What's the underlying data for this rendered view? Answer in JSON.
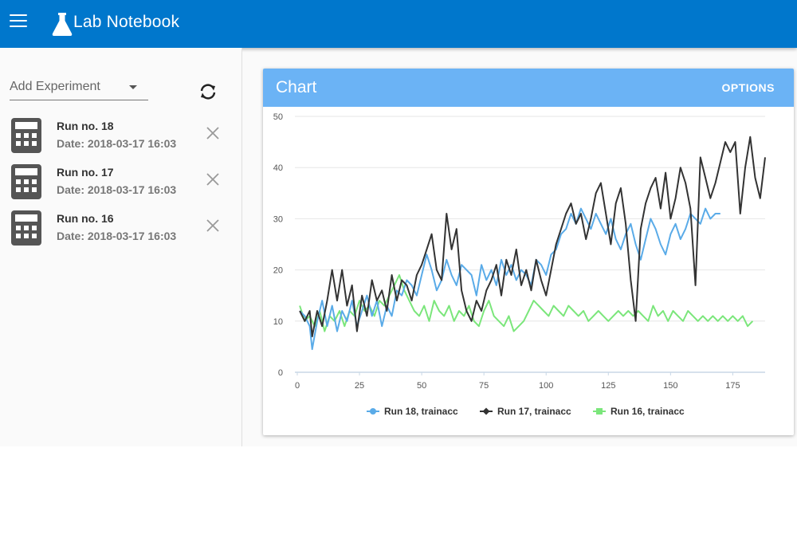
{
  "app": {
    "title": "Lab Notebook"
  },
  "sidebar": {
    "add_experiment_label": "Add Experiment",
    "experiments": [
      {
        "name": "Run no. 18",
        "date": "Date: 2018-03-17 16:03"
      },
      {
        "name": "Run no. 17",
        "date": "Date: 2018-03-17 16:03"
      },
      {
        "name": "Run no. 16",
        "date": "Date: 2018-03-17 16:03"
      }
    ]
  },
  "card": {
    "title": "Chart",
    "options_label": "OPTIONS"
  },
  "colors": {
    "appbar": "#0077cc",
    "card_header": "#6bb3f5",
    "run18": "#5aabe8",
    "run17": "#333333",
    "run16": "#7be67b"
  },
  "chart_data": {
    "type": "line",
    "title": "",
    "xlabel": "",
    "ylabel": "",
    "xlim": [
      0,
      188
    ],
    "ylim": [
      0,
      50
    ],
    "x_ticks": [
      0,
      25,
      50,
      75,
      100,
      125,
      150,
      175
    ],
    "y_ticks": [
      0,
      10,
      20,
      30,
      40,
      50
    ],
    "grid": "horizontal",
    "legend_position": "bottom",
    "series": [
      {
        "name": "Run 18, trainacc",
        "color": "#5aabe8",
        "points": [
          [
            1,
            12
          ],
          [
            3,
            11
          ],
          [
            5,
            9
          ],
          [
            6,
            4.5
          ],
          [
            8,
            10
          ],
          [
            10,
            14
          ],
          [
            12,
            9
          ],
          [
            14,
            13
          ],
          [
            16,
            8
          ],
          [
            18,
            12
          ],
          [
            20,
            10
          ],
          [
            22,
            14
          ],
          [
            24,
            9
          ],
          [
            26,
            12
          ],
          [
            28,
            15
          ],
          [
            30,
            11
          ],
          [
            32,
            14
          ],
          [
            34,
            9
          ],
          [
            36,
            13
          ],
          [
            38,
            11
          ],
          [
            40,
            16
          ],
          [
            42,
            15
          ],
          [
            44,
            18
          ],
          [
            46,
            17
          ],
          [
            48,
            15
          ],
          [
            50,
            19
          ],
          [
            52,
            23
          ],
          [
            54,
            20
          ],
          [
            56,
            16
          ],
          [
            58,
            18
          ],
          [
            60,
            22
          ],
          [
            62,
            19
          ],
          [
            64,
            17
          ],
          [
            66,
            21
          ],
          [
            68,
            20
          ],
          [
            70,
            19
          ],
          [
            72,
            15
          ],
          [
            74,
            21
          ],
          [
            76,
            18
          ],
          [
            78,
            20
          ],
          [
            80,
            17
          ],
          [
            82,
            22
          ],
          [
            84,
            19
          ],
          [
            86,
            21
          ],
          [
            88,
            18
          ],
          [
            90,
            20
          ],
          [
            92,
            19
          ],
          [
            94,
            17
          ],
          [
            96,
            22
          ],
          [
            98,
            21
          ],
          [
            100,
            19
          ],
          [
            102,
            23
          ],
          [
            104,
            24
          ],
          [
            106,
            27
          ],
          [
            108,
            28
          ],
          [
            110,
            31
          ],
          [
            112,
            29
          ],
          [
            114,
            32
          ],
          [
            116,
            30
          ],
          [
            118,
            28
          ],
          [
            120,
            31
          ],
          [
            122,
            29
          ],
          [
            124,
            27
          ],
          [
            126,
            30
          ],
          [
            128,
            26
          ],
          [
            130,
            24
          ],
          [
            132,
            27
          ],
          [
            134,
            29
          ],
          [
            136,
            25
          ],
          [
            138,
            22
          ],
          [
            140,
            26
          ],
          [
            142,
            30
          ],
          [
            144,
            28
          ],
          [
            146,
            25
          ],
          [
            148,
            23
          ],
          [
            150,
            27
          ],
          [
            152,
            29
          ],
          [
            154,
            26
          ],
          [
            156,
            28
          ],
          [
            158,
            31
          ],
          [
            160,
            30
          ],
          [
            162,
            29
          ],
          [
            164,
            32
          ],
          [
            166,
            30
          ],
          [
            168,
            31
          ],
          [
            170,
            31
          ]
        ]
      },
      {
        "name": "Run 17, trainacc",
        "color": "#333333",
        "points": [
          [
            1,
            12
          ],
          [
            3,
            10
          ],
          [
            5,
            12
          ],
          [
            6,
            7
          ],
          [
            8,
            12
          ],
          [
            10,
            9
          ],
          [
            12,
            14
          ],
          [
            14,
            20
          ],
          [
            16,
            14
          ],
          [
            18,
            20
          ],
          [
            20,
            13
          ],
          [
            22,
            17
          ],
          [
            24,
            8
          ],
          [
            26,
            15
          ],
          [
            28,
            11
          ],
          [
            30,
            18
          ],
          [
            32,
            14
          ],
          [
            34,
            16
          ],
          [
            36,
            12
          ],
          [
            38,
            19
          ],
          [
            40,
            14
          ],
          [
            42,
            18
          ],
          [
            44,
            17
          ],
          [
            46,
            14
          ],
          [
            48,
            19
          ],
          [
            50,
            21
          ],
          [
            52,
            24
          ],
          [
            54,
            27
          ],
          [
            56,
            20
          ],
          [
            58,
            18
          ],
          [
            60,
            31
          ],
          [
            62,
            24
          ],
          [
            64,
            28
          ],
          [
            66,
            16
          ],
          [
            68,
            12
          ],
          [
            70,
            10
          ],
          [
            72,
            14
          ],
          [
            74,
            12
          ],
          [
            76,
            16
          ],
          [
            78,
            18
          ],
          [
            80,
            21
          ],
          [
            82,
            15
          ],
          [
            84,
            22
          ],
          [
            86,
            19
          ],
          [
            88,
            24
          ],
          [
            90,
            17
          ],
          [
            92,
            20
          ],
          [
            94,
            16
          ],
          [
            96,
            22
          ],
          [
            98,
            18
          ],
          [
            100,
            15
          ],
          [
            102,
            20
          ],
          [
            104,
            25
          ],
          [
            106,
            28
          ],
          [
            108,
            31
          ],
          [
            110,
            33
          ],
          [
            112,
            29
          ],
          [
            114,
            31
          ],
          [
            116,
            26
          ],
          [
            118,
            30
          ],
          [
            120,
            35
          ],
          [
            122,
            37
          ],
          [
            124,
            31
          ],
          [
            126,
            25
          ],
          [
            128,
            33
          ],
          [
            130,
            36
          ],
          [
            132,
            29
          ],
          [
            134,
            18
          ],
          [
            136,
            10
          ],
          [
            138,
            28
          ],
          [
            140,
            33
          ],
          [
            142,
            36
          ],
          [
            144,
            38
          ],
          [
            146,
            32
          ],
          [
            148,
            39
          ],
          [
            150,
            30
          ],
          [
            152,
            34
          ],
          [
            154,
            40
          ],
          [
            156,
            37
          ],
          [
            158,
            32
          ],
          [
            160,
            17
          ],
          [
            162,
            42
          ],
          [
            164,
            38
          ],
          [
            166,
            34
          ],
          [
            168,
            37
          ],
          [
            170,
            41
          ],
          [
            172,
            45
          ],
          [
            174,
            43
          ],
          [
            176,
            45
          ],
          [
            178,
            31
          ],
          [
            180,
            40
          ],
          [
            182,
            46
          ],
          [
            184,
            38
          ],
          [
            186,
            34
          ],
          [
            188,
            42
          ]
        ]
      },
      {
        "name": "Run 16, trainacc",
        "color": "#7be67b",
        "points": [
          [
            1,
            13
          ],
          [
            3,
            10
          ],
          [
            5,
            11
          ],
          [
            7,
            9
          ],
          [
            9,
            12
          ],
          [
            11,
            8
          ],
          [
            13,
            11
          ],
          [
            15,
            10
          ],
          [
            17,
            12
          ],
          [
            19,
            9
          ],
          [
            21,
            12
          ],
          [
            23,
            11
          ],
          [
            25,
            14
          ],
          [
            27,
            12
          ],
          [
            29,
            13
          ],
          [
            31,
            11
          ],
          [
            33,
            14
          ],
          [
            35,
            13
          ],
          [
            37,
            15
          ],
          [
            39,
            17
          ],
          [
            41,
            19
          ],
          [
            43,
            16
          ],
          [
            45,
            14
          ],
          [
            47,
            12
          ],
          [
            49,
            11
          ],
          [
            51,
            13
          ],
          [
            53,
            10
          ],
          [
            55,
            14
          ],
          [
            57,
            12
          ],
          [
            59,
            11
          ],
          [
            61,
            13
          ],
          [
            63,
            10
          ],
          [
            65,
            12
          ],
          [
            67,
            11
          ],
          [
            69,
            13
          ],
          [
            71,
            10
          ],
          [
            73,
            9
          ],
          [
            75,
            12
          ],
          [
            77,
            14
          ],
          [
            79,
            11
          ],
          [
            81,
            10
          ],
          [
            83,
            9
          ],
          [
            85,
            11
          ],
          [
            87,
            8
          ],
          [
            89,
            9
          ],
          [
            91,
            10
          ],
          [
            93,
            12
          ],
          [
            95,
            14
          ],
          [
            97,
            13
          ],
          [
            99,
            12
          ],
          [
            101,
            11
          ],
          [
            103,
            13
          ],
          [
            105,
            12
          ],
          [
            107,
            11
          ],
          [
            109,
            13
          ],
          [
            111,
            12
          ],
          [
            113,
            11
          ],
          [
            115,
            12
          ],
          [
            117,
            10
          ],
          [
            119,
            11
          ],
          [
            121,
            12
          ],
          [
            123,
            11
          ],
          [
            125,
            10
          ],
          [
            127,
            11
          ],
          [
            129,
            12
          ],
          [
            131,
            11
          ],
          [
            133,
            12
          ],
          [
            135,
            11
          ],
          [
            137,
            12
          ],
          [
            139,
            11
          ],
          [
            141,
            10
          ],
          [
            143,
            13
          ],
          [
            145,
            11
          ],
          [
            147,
            12
          ],
          [
            149,
            10
          ],
          [
            151,
            12
          ],
          [
            153,
            11
          ],
          [
            155,
            10
          ],
          [
            157,
            12
          ],
          [
            159,
            11
          ],
          [
            161,
            10
          ],
          [
            163,
            11
          ],
          [
            165,
            10
          ],
          [
            167,
            11
          ],
          [
            169,
            10
          ],
          [
            171,
            11
          ],
          [
            173,
            10
          ],
          [
            175,
            11
          ],
          [
            177,
            10
          ],
          [
            179,
            11
          ],
          [
            181,
            9
          ],
          [
            183,
            10
          ]
        ]
      }
    ]
  }
}
